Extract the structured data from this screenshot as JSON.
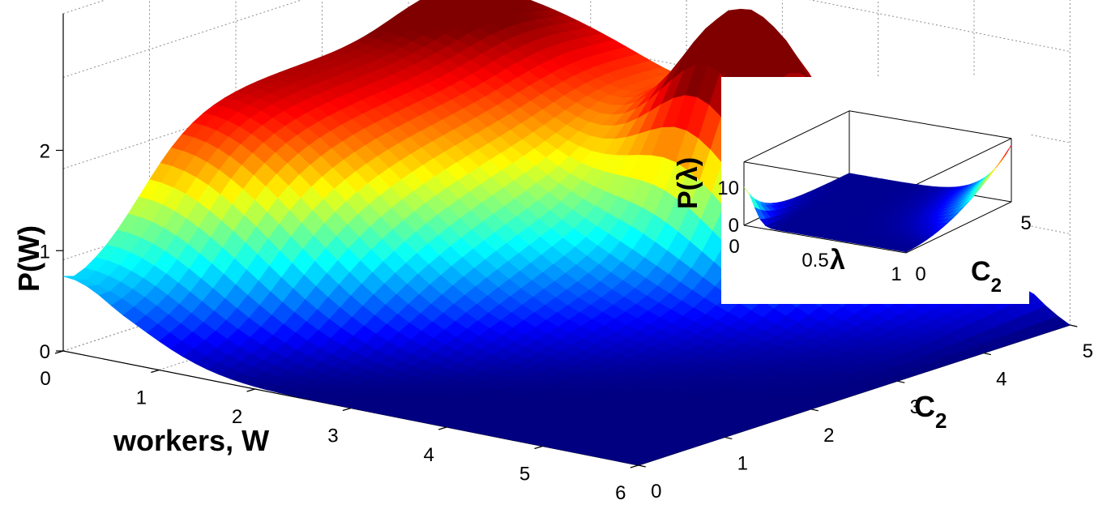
{
  "chart_data": [
    {
      "type": "surface",
      "xlabel": "workers, W",
      "ylabel": "C",
      "ylabel_sub": "2",
      "zlabel": "P(W)",
      "x_ticks": [
        "0",
        "1",
        "2",
        "3",
        "4",
        "5",
        "6"
      ],
      "y_ticks": [
        "0",
        "1",
        "2",
        "3",
        "4",
        "5"
      ],
      "z_ticks": [
        "0",
        "1",
        "2"
      ],
      "xlim": [
        0,
        6
      ],
      "ylim": [
        0,
        5
      ],
      "zlim": [
        0,
        2.2
      ],
      "colormap": "jet",
      "grid": true,
      "surface_description_points": [
        {
          "W": 0.0,
          "C2": 0.0,
          "P": 0.6
        },
        {
          "W": 0.5,
          "C2": 2.5,
          "P": 1.7
        },
        {
          "W": 0.3,
          "C2": 4.0,
          "P": 2.3
        },
        {
          "W": 0.8,
          "C2": 5.0,
          "P": 1.6
        },
        {
          "W": 2.5,
          "C2": 5.0,
          "P": 2.3
        },
        {
          "W": 6.0,
          "C2": 0.0,
          "P": 0.0
        },
        {
          "W": 6.0,
          "C2": 5.0,
          "P": 0.0
        }
      ]
    },
    {
      "type": "surface",
      "role": "inset",
      "xlabel": "λ",
      "ylabel": "C",
      "ylabel_sub": "2",
      "zlabel": "P(λ)",
      "x_ticks": [
        "0",
        "0.5",
        "1"
      ],
      "y_ticks": [
        "0",
        "5"
      ],
      "z_ticks": [
        "0",
        "10"
      ],
      "xlim": [
        0,
        1
      ],
      "ylim": [
        0,
        5
      ],
      "zlim": [
        0,
        15
      ],
      "colormap": "jet",
      "grid": false,
      "surface_description_points": [
        {
          "lambda": 0.0,
          "C2": 0.0,
          "P": 10
        },
        {
          "lambda": 0.5,
          "C2": 2.5,
          "P": 0.2
        },
        {
          "lambda": 1.0,
          "C2": 5.0,
          "P": 15
        }
      ]
    }
  ]
}
